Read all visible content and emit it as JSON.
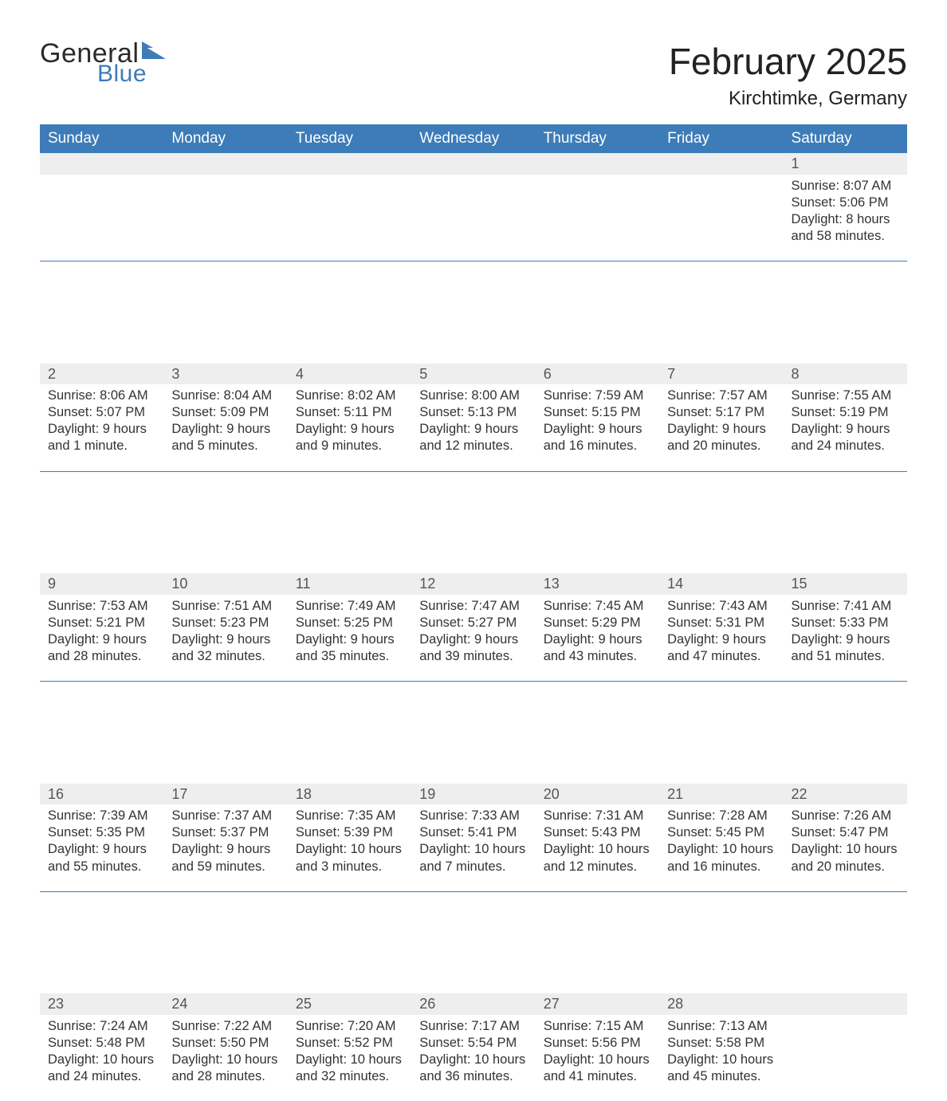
{
  "brand": {
    "word1": "General",
    "word2": "Blue",
    "flag_color": "#3d7cb8"
  },
  "title": "February 2025",
  "location": "Kirchtimke, Germany",
  "colors": {
    "header_bg": "#3d7cb8",
    "header_text": "#ffffff",
    "daynum_bg": "#eeeeee",
    "daynum_text": "#555555",
    "body_text": "#333333",
    "divider": "#3d7cb8",
    "page_bg": "#ffffff"
  },
  "typography": {
    "title_fontsize": 46,
    "location_fontsize": 24,
    "header_fontsize": 19,
    "daynum_fontsize": 18,
    "body_fontsize": 16.5,
    "font_family": "Arial"
  },
  "weekday_labels": [
    "Sunday",
    "Monday",
    "Tuesday",
    "Wednesday",
    "Thursday",
    "Friday",
    "Saturday"
  ],
  "weeks": [
    [
      null,
      null,
      null,
      null,
      null,
      null,
      {
        "n": "1",
        "sunrise": "8:07 AM",
        "sunset": "5:06 PM",
        "daylight": "8 hours and 58 minutes."
      }
    ],
    [
      {
        "n": "2",
        "sunrise": "8:06 AM",
        "sunset": "5:07 PM",
        "daylight": "9 hours and 1 minute."
      },
      {
        "n": "3",
        "sunrise": "8:04 AM",
        "sunset": "5:09 PM",
        "daylight": "9 hours and 5 minutes."
      },
      {
        "n": "4",
        "sunrise": "8:02 AM",
        "sunset": "5:11 PM",
        "daylight": "9 hours and 9 minutes."
      },
      {
        "n": "5",
        "sunrise": "8:00 AM",
        "sunset": "5:13 PM",
        "daylight": "9 hours and 12 minutes."
      },
      {
        "n": "6",
        "sunrise": "7:59 AM",
        "sunset": "5:15 PM",
        "daylight": "9 hours and 16 minutes."
      },
      {
        "n": "7",
        "sunrise": "7:57 AM",
        "sunset": "5:17 PM",
        "daylight": "9 hours and 20 minutes."
      },
      {
        "n": "8",
        "sunrise": "7:55 AM",
        "sunset": "5:19 PM",
        "daylight": "9 hours and 24 minutes."
      }
    ],
    [
      {
        "n": "9",
        "sunrise": "7:53 AM",
        "sunset": "5:21 PM",
        "daylight": "9 hours and 28 minutes."
      },
      {
        "n": "10",
        "sunrise": "7:51 AM",
        "sunset": "5:23 PM",
        "daylight": "9 hours and 32 minutes."
      },
      {
        "n": "11",
        "sunrise": "7:49 AM",
        "sunset": "5:25 PM",
        "daylight": "9 hours and 35 minutes."
      },
      {
        "n": "12",
        "sunrise": "7:47 AM",
        "sunset": "5:27 PM",
        "daylight": "9 hours and 39 minutes."
      },
      {
        "n": "13",
        "sunrise": "7:45 AM",
        "sunset": "5:29 PM",
        "daylight": "9 hours and 43 minutes."
      },
      {
        "n": "14",
        "sunrise": "7:43 AM",
        "sunset": "5:31 PM",
        "daylight": "9 hours and 47 minutes."
      },
      {
        "n": "15",
        "sunrise": "7:41 AM",
        "sunset": "5:33 PM",
        "daylight": "9 hours and 51 minutes."
      }
    ],
    [
      {
        "n": "16",
        "sunrise": "7:39 AM",
        "sunset": "5:35 PM",
        "daylight": "9 hours and 55 minutes."
      },
      {
        "n": "17",
        "sunrise": "7:37 AM",
        "sunset": "5:37 PM",
        "daylight": "9 hours and 59 minutes."
      },
      {
        "n": "18",
        "sunrise": "7:35 AM",
        "sunset": "5:39 PM",
        "daylight": "10 hours and 3 minutes."
      },
      {
        "n": "19",
        "sunrise": "7:33 AM",
        "sunset": "5:41 PM",
        "daylight": "10 hours and 7 minutes."
      },
      {
        "n": "20",
        "sunrise": "7:31 AM",
        "sunset": "5:43 PM",
        "daylight": "10 hours and 12 minutes."
      },
      {
        "n": "21",
        "sunrise": "7:28 AM",
        "sunset": "5:45 PM",
        "daylight": "10 hours and 16 minutes."
      },
      {
        "n": "22",
        "sunrise": "7:26 AM",
        "sunset": "5:47 PM",
        "daylight": "10 hours and 20 minutes."
      }
    ],
    [
      {
        "n": "23",
        "sunrise": "7:24 AM",
        "sunset": "5:48 PM",
        "daylight": "10 hours and 24 minutes."
      },
      {
        "n": "24",
        "sunrise": "7:22 AM",
        "sunset": "5:50 PM",
        "daylight": "10 hours and 28 minutes."
      },
      {
        "n": "25",
        "sunrise": "7:20 AM",
        "sunset": "5:52 PM",
        "daylight": "10 hours and 32 minutes."
      },
      {
        "n": "26",
        "sunrise": "7:17 AM",
        "sunset": "5:54 PM",
        "daylight": "10 hours and 36 minutes."
      },
      {
        "n": "27",
        "sunrise": "7:15 AM",
        "sunset": "5:56 PM",
        "daylight": "10 hours and 41 minutes."
      },
      {
        "n": "28",
        "sunrise": "7:13 AM",
        "sunset": "5:58 PM",
        "daylight": "10 hours and 45 minutes."
      },
      null
    ]
  ],
  "labels": {
    "sunrise": "Sunrise:",
    "sunset": "Sunset:",
    "daylight": "Daylight:"
  }
}
